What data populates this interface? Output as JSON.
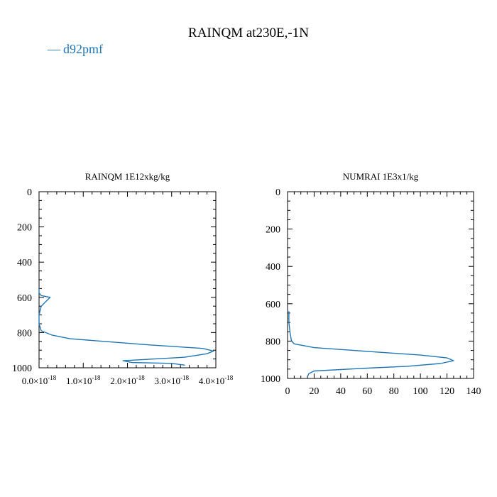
{
  "title": "RAINQM at230E,-1N",
  "legend": {
    "label": "d92pmf",
    "color": "#1f77b4"
  },
  "chart_data": [
    {
      "type": "line",
      "title": "RAINQM  1E12xkg/kg",
      "x_tick_labels": [
        {
          "m": "0.0",
          "e": "-18",
          "v": 0
        },
        {
          "m": "1.0",
          "e": "-18",
          "v": 1e-18
        },
        {
          "m": "2.0",
          "e": "-18",
          "v": 2e-18
        },
        {
          "m": "3.0",
          "e": "-18",
          "v": 3e-18
        },
        {
          "m": "4.0",
          "e": "-18",
          "v": 4e-18
        }
      ],
      "y_ticks": [
        0,
        200,
        400,
        600,
        800,
        1000
      ],
      "xlim": [
        0,
        4e-18
      ],
      "ylim": [
        1000,
        0
      ],
      "series": [
        {
          "name": "d92pmf",
          "color": "#1f77b4",
          "x": [
            0,
            0,
            5e-20,
            2.5e-19,
            5e-20,
            0,
            0,
            5e-20,
            3e-19,
            7e-19,
            2.5e-18,
            3.7e-18,
            3.95e-18,
            3.8e-18,
            3.3e-18,
            1.9e-18,
            2.1e-18,
            3e-18,
            3.3e-18
          ],
          "y": [
            550,
            575,
            590,
            600,
            650,
            700,
            750,
            790,
            815,
            835,
            870,
            890,
            905,
            920,
            940,
            960,
            970,
            975,
            985
          ]
        }
      ]
    },
    {
      "type": "line",
      "title": "NUMRAI  1E3x1/kg",
      "x_ticks": [
        0,
        20,
        40,
        60,
        80,
        100,
        120,
        140
      ],
      "y_ticks": [
        0,
        200,
        400,
        600,
        800,
        1000
      ],
      "xlim": [
        0,
        140
      ],
      "ylim": [
        1000,
        0
      ],
      "series": [
        {
          "name": "d92pmf",
          "color": "#1f77b4",
          "x": [
            1,
            1,
            2,
            3,
            5,
            20,
            60,
            100,
            120,
            125,
            115,
            90,
            60,
            20,
            16,
            15
          ],
          "y": [
            640,
            700,
            760,
            800,
            815,
            835,
            855,
            875,
            890,
            905,
            920,
            935,
            945,
            960,
            975,
            990
          ]
        }
      ]
    }
  ]
}
